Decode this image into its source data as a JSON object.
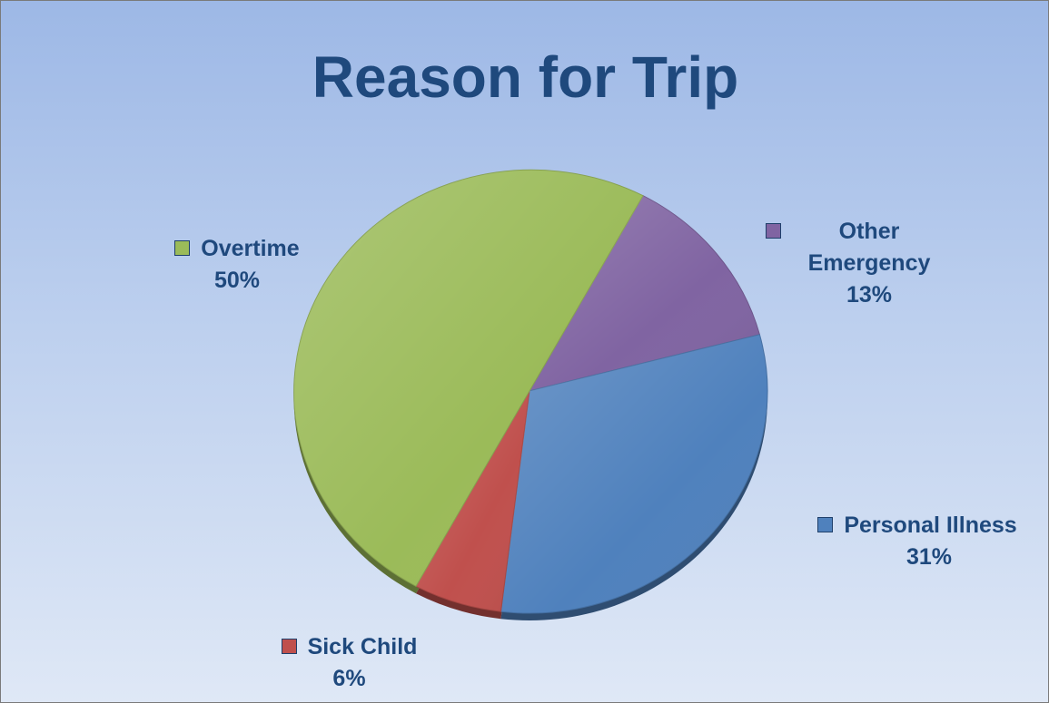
{
  "chart_data": {
    "type": "pie",
    "title": "Reason for Trip",
    "slices": [
      {
        "label": "Overtime",
        "value": 50,
        "percent_label": "50%",
        "color": "#9bbb59"
      },
      {
        "label": "Other Emergency",
        "label_lines": [
          "Other",
          "Emergency"
        ],
        "value": 13,
        "percent_label": "13%",
        "color": "#8064a2"
      },
      {
        "label": "Personal Illness",
        "value": 31,
        "percent_label": "31%",
        "color": "#4f81bd"
      },
      {
        "label": "Sick Child",
        "value": 6,
        "percent_label": "6%",
        "color": "#c0504d"
      }
    ],
    "legend": "labels-outside",
    "grid": false
  }
}
